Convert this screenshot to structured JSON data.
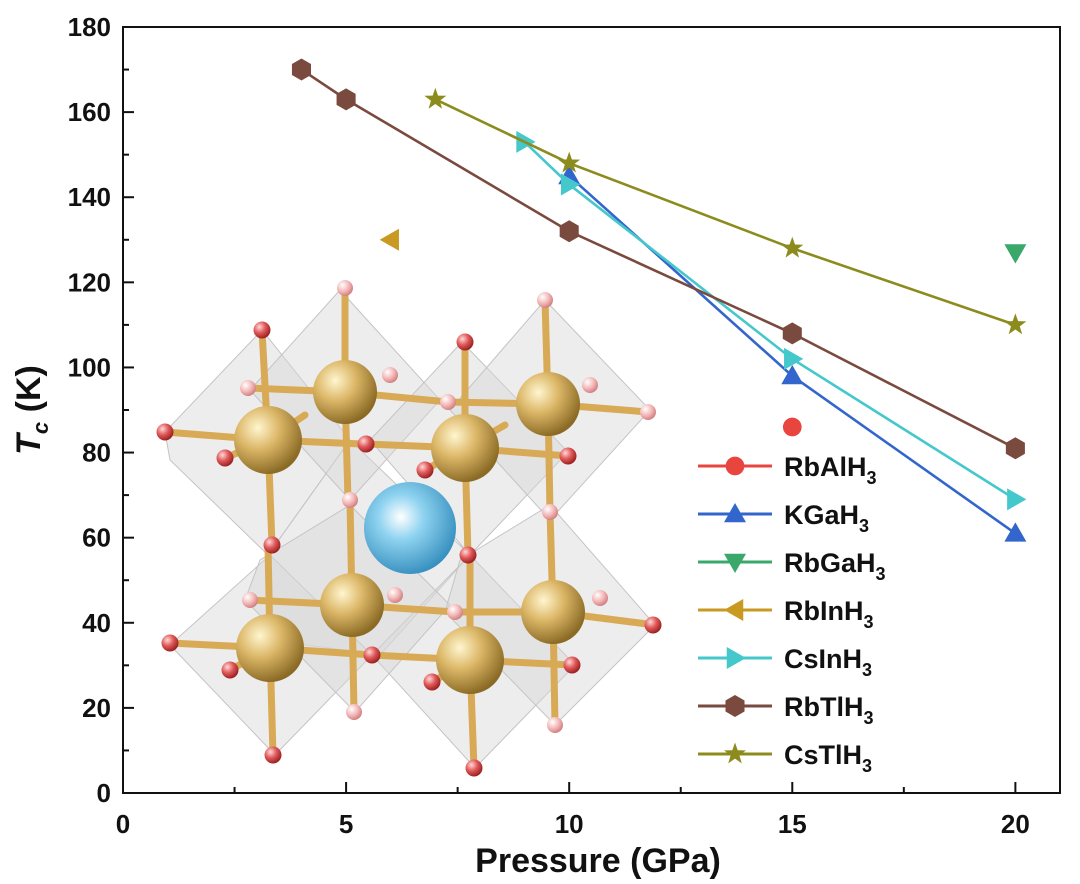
{
  "chart_data": {
    "type": "line",
    "title": "",
    "xlabel": "Pressure (GPa)",
    "ylabel_main": "T",
    "ylabel_sub": "c",
    "ylabel_unit": " (K)",
    "xlim": [
      0,
      21
    ],
    "ylim": [
      0,
      180
    ],
    "xticks": [
      0,
      5,
      10,
      15,
      20
    ],
    "yticks": [
      0,
      20,
      40,
      60,
      80,
      100,
      120,
      140,
      160,
      180
    ],
    "grid": false,
    "legend_position": "right",
    "series": [
      {
        "name": "RbAlH",
        "sub": "3",
        "color": "#e8453f",
        "marker": "circle",
        "x": [
          15
        ],
        "y": [
          86
        ]
      },
      {
        "name": "KGaH",
        "sub": "3",
        "color": "#3366cc",
        "marker": "triangle-up",
        "x": [
          10,
          15,
          20
        ],
        "y": [
          145,
          98,
          61
        ]
      },
      {
        "name": "RbGaH",
        "sub": "3",
        "color": "#3aa86b",
        "marker": "triangle-down",
        "x": [
          20
        ],
        "y": [
          127
        ]
      },
      {
        "name": "RbInH",
        "sub": "3",
        "color": "#c89a22",
        "marker": "triangle-left",
        "x": [
          6
        ],
        "y": [
          130
        ]
      },
      {
        "name": "CsInH",
        "sub": "3",
        "color": "#45c8cc",
        "marker": "triangle-right",
        "x": [
          9,
          10,
          15,
          20
        ],
        "y": [
          153,
          143,
          102,
          69
        ]
      },
      {
        "name": "RbTlH",
        "sub": "3",
        "color": "#7a4a3e",
        "marker": "hexagon",
        "x": [
          4,
          5,
          10,
          15,
          20
        ],
        "y": [
          170,
          163,
          132,
          108,
          81
        ]
      },
      {
        "name": "CsTlH",
        "sub": "3",
        "color": "#8c8c1e",
        "marker": "star",
        "x": [
          7,
          10,
          15,
          20
        ],
        "y": [
          163,
          148,
          128,
          110
        ]
      }
    ]
  }
}
